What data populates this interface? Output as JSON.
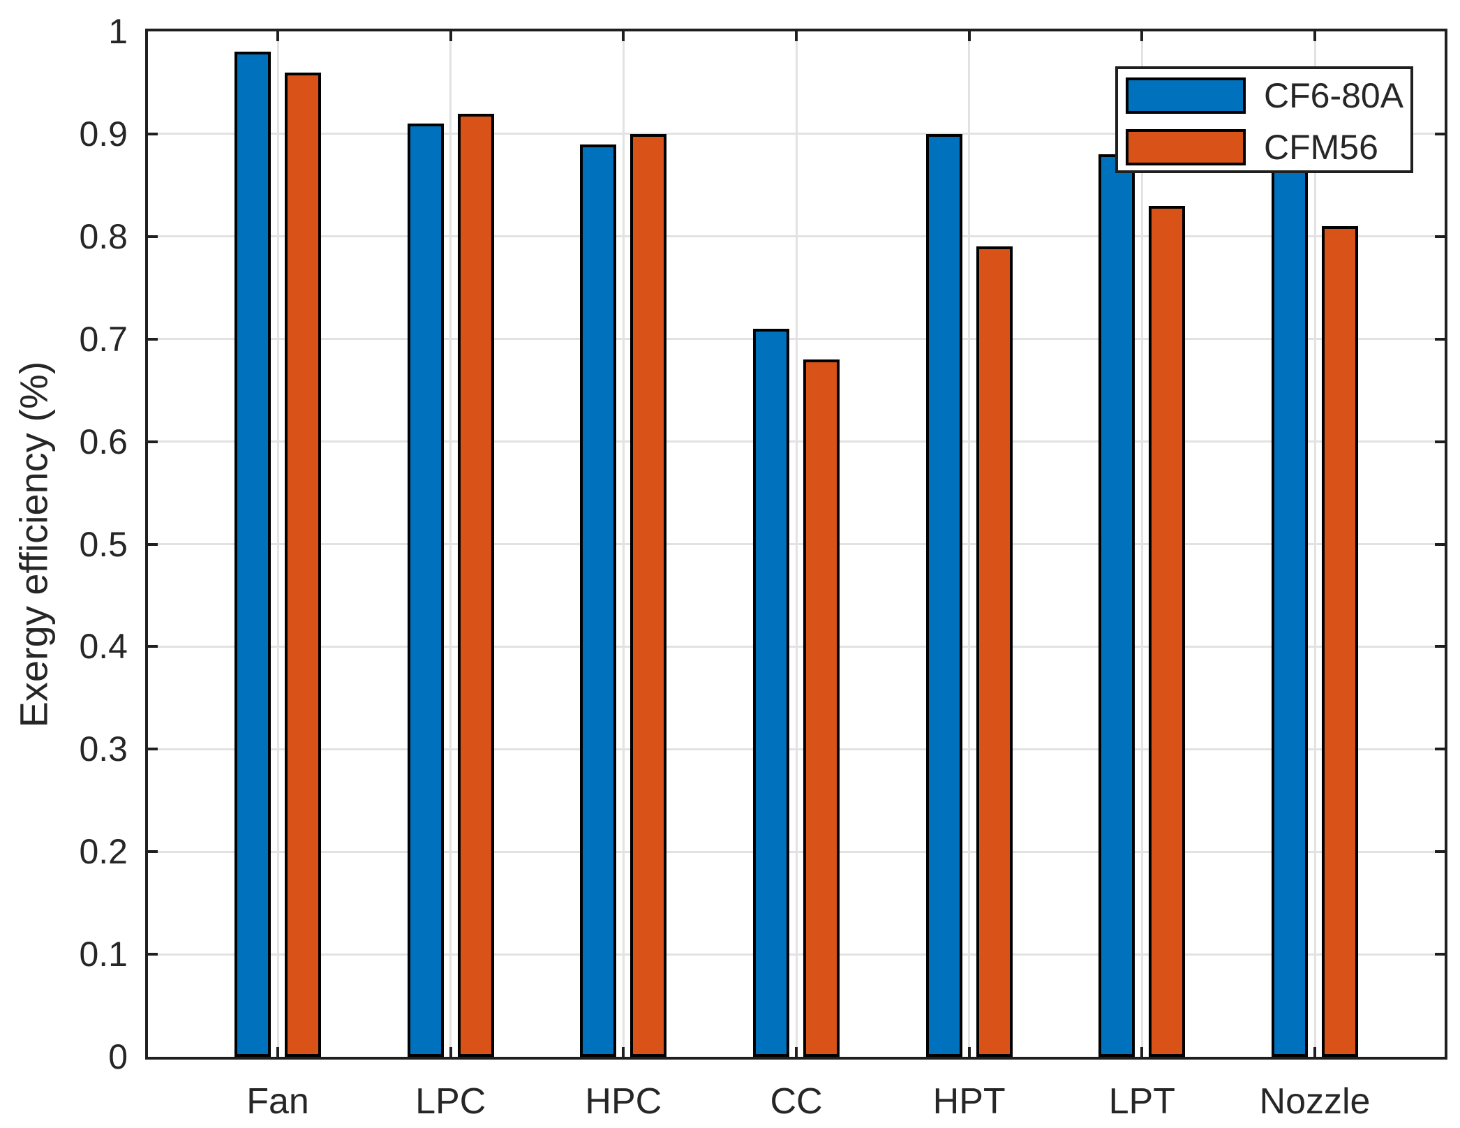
{
  "chart_data": {
    "type": "bar",
    "title": "",
    "xlabel": "",
    "ylabel": "Exergy efficiency (%)",
    "categories": [
      "Fan",
      "LPC",
      "HPC",
      "CC",
      "HPT",
      "LPT",
      "Nozzle"
    ],
    "series": [
      {
        "name": "CF6-80A",
        "color": "#0072BD",
        "values": [
          0.98,
          0.91,
          0.89,
          0.71,
          0.9,
          0.88,
          0.9
        ]
      },
      {
        "name": "CFM56",
        "color": "#D95319",
        "values": [
          0.96,
          0.92,
          0.9,
          0.68,
          0.79,
          0.83,
          0.81
        ]
      }
    ],
    "ylim": [
      0,
      1
    ],
    "ytick_step": 0.1,
    "ytick_labels": [
      "0",
      "0.1",
      "0.2",
      "0.3",
      "0.4",
      "0.5",
      "0.6",
      "0.7",
      "0.8",
      "0.9",
      "1"
    ],
    "grid": true,
    "legend_position": "top-right",
    "notes": {
      "nozzle_cf6_top_occluded_by_legend": true
    }
  },
  "colors": {
    "background": "#ffffff",
    "axis": "#1f1f1f",
    "grid": "#e2e2e2",
    "text": "#262626",
    "bar_edge": "#000000",
    "series_blue": "#0072BD",
    "series_orange": "#D95319",
    "legend_bg": "#ffffff"
  }
}
